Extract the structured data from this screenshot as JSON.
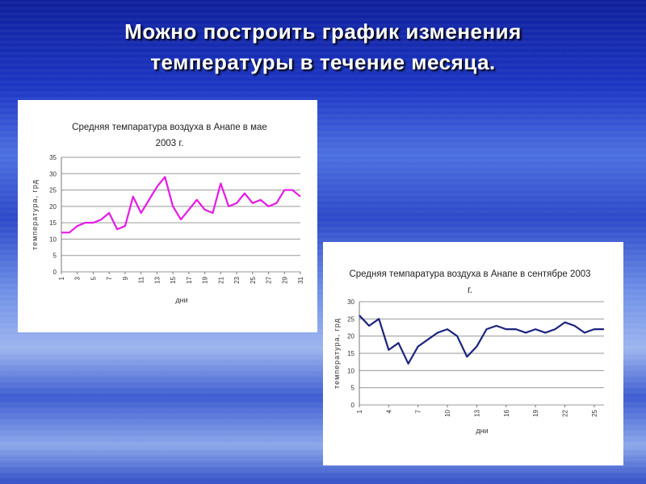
{
  "slide_title": [
    "Можно построить график изменения",
    "температуры в течение месяца."
  ],
  "chart_data": [
    {
      "type": "line",
      "title": "Средняя темпаратура воздуха в Анапе в мае 2003 г.",
      "ylabel": "температура, грд",
      "xlabel": "дни",
      "color": "#e619e6",
      "grid": true,
      "x": [
        1,
        2,
        3,
        4,
        5,
        6,
        7,
        8,
        9,
        10,
        11,
        12,
        13,
        14,
        15,
        16,
        17,
        18,
        19,
        20,
        21,
        22,
        23,
        24,
        25,
        26,
        27,
        28,
        29,
        30,
        31
      ],
      "values": [
        12,
        12,
        14,
        15,
        15,
        16,
        18,
        13,
        14,
        23,
        18,
        22,
        26,
        29,
        20,
        16,
        19,
        22,
        19,
        18,
        27,
        20,
        21,
        24,
        21,
        22,
        20,
        21,
        25,
        25,
        23
      ],
      "xlim": [
        1,
        31
      ],
      "xticks": [
        1,
        3,
        5,
        7,
        9,
        11,
        13,
        15,
        17,
        19,
        21,
        23,
        25,
        27,
        29,
        31
      ],
      "ylim": [
        0,
        35
      ],
      "yticks": [
        0,
        5,
        10,
        15,
        20,
        25,
        30,
        35
      ]
    },
    {
      "type": "line",
      "title": "Средняя темпаратура воздуха в Анапе в сентябре 2003 г.",
      "ylabel": "температура, грд",
      "xlabel": "дни",
      "color": "#1a237e",
      "grid": true,
      "x": [
        1,
        2,
        3,
        4,
        5,
        6,
        7,
        8,
        9,
        10,
        11,
        12,
        13,
        14,
        15,
        16,
        17,
        18,
        19,
        20,
        21,
        22,
        23,
        24,
        25,
        26
      ],
      "values": [
        26,
        23,
        25,
        16,
        18,
        12,
        17,
        19,
        21,
        22,
        20,
        14,
        17,
        22,
        23,
        22,
        22,
        21,
        22,
        21,
        22,
        24,
        23,
        21,
        22,
        22
      ],
      "xlim": [
        1,
        26
      ],
      "xticks": [
        1,
        4,
        7,
        10,
        13,
        16,
        19,
        22,
        25
      ],
      "ylim": [
        0,
        30
      ],
      "yticks": [
        0,
        5,
        10,
        15,
        20,
        25,
        30
      ]
    }
  ]
}
